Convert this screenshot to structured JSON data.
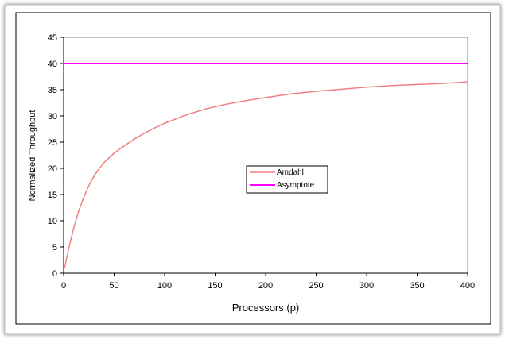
{
  "chart_data": {
    "type": "line",
    "xlabel": "Processors (p)",
    "ylabel": "Normalized Throughput",
    "xlim": [
      0,
      400
    ],
    "ylim": [
      0,
      45
    ],
    "x_ticks": [
      0,
      50,
      100,
      150,
      200,
      250,
      300,
      350,
      400
    ],
    "y_ticks": [
      0,
      5,
      10,
      15,
      20,
      25,
      30,
      35,
      40,
      45
    ],
    "grid": false,
    "legend_position": "center-right",
    "series": [
      {
        "name": "Amdahl",
        "color": "#f08080",
        "x": [
          1,
          5,
          10,
          15,
          20,
          25,
          30,
          35,
          40,
          50,
          60,
          70,
          80,
          90,
          100,
          120,
          140,
          160,
          180,
          200,
          225,
          250,
          275,
          300,
          325,
          350,
          375,
          400
        ],
        "y": [
          1,
          4.7,
          8.6,
          11.9,
          14.5,
          16.7,
          18.5,
          19.9,
          21.1,
          22.9,
          24.3,
          25.6,
          26.7,
          27.7,
          28.6,
          30.1,
          31.3,
          32.2,
          32.9,
          33.5,
          34.2,
          34.7,
          35.1,
          35.5,
          35.8,
          36.0,
          36.2,
          36.5
        ]
      },
      {
        "name": "Asymptote",
        "color": "#ff00ff",
        "x": [
          0,
          400
        ],
        "y": [
          40,
          40
        ]
      }
    ]
  }
}
